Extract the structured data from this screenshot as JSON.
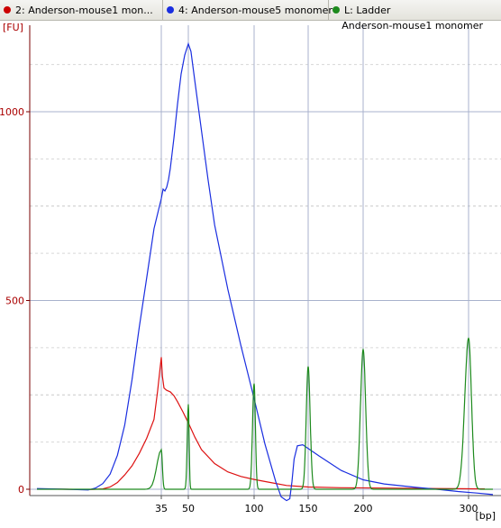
{
  "tabs": [
    {
      "label": "2: Anderson-mouse1 mon...",
      "color": "#cc0000",
      "active": true
    },
    {
      "label": "4: Anderson-mouse5 monomer",
      "color": "#1a2ee0",
      "active": false
    },
    {
      "label": "L: Ladder",
      "color": "#1d8a1d",
      "active": false
    }
  ],
  "chart_data": {
    "type": "line",
    "title": "Anderson-mouse1 monomer",
    "ylabel": "[FU]",
    "xlabel": "[bp]",
    "x_ticks": [
      {
        "label": "35",
        "value": 35
      },
      {
        "label": "50",
        "value": 50
      },
      {
        "label": "100",
        "value": 100
      },
      {
        "label": "150",
        "value": 150
      },
      {
        "label": "200",
        "value": 200
      },
      {
        "label": "300",
        "value": 300
      }
    ],
    "y_ticks": [
      0,
      500,
      1000
    ],
    "ylim": [
      -25,
      1235
    ],
    "grid": true,
    "series": [
      {
        "name": "Anderson-mouse1 monomer",
        "color": "#dd1111",
        "points": [
          [
            18,
            1
          ],
          [
            22,
            0
          ],
          [
            25,
            -1
          ],
          [
            27,
            1
          ],
          [
            28,
            6
          ],
          [
            29,
            18
          ],
          [
            30,
            38
          ],
          [
            31,
            62
          ],
          [
            32,
            95
          ],
          [
            33,
            135
          ],
          [
            34,
            185
          ],
          [
            34.5,
            260
          ],
          [
            35,
            350
          ],
          [
            35.6,
            300
          ],
          [
            36.5,
            268
          ],
          [
            38,
            262
          ],
          [
            40,
            258
          ],
          [
            42,
            248
          ],
          [
            44,
            232
          ],
          [
            47,
            205
          ],
          [
            50,
            176
          ],
          [
            55,
            138
          ],
          [
            60,
            105
          ],
          [
            70,
            68
          ],
          [
            80,
            46
          ],
          [
            90,
            34
          ],
          [
            100,
            26
          ],
          [
            115,
            18
          ],
          [
            130,
            10
          ],
          [
            150,
            6
          ],
          [
            180,
            4
          ],
          [
            220,
            3
          ],
          [
            270,
            2
          ],
          [
            320,
            1
          ]
        ]
      },
      {
        "name": "Anderson-mouse5 monomer",
        "color": "#1a2ee0",
        "points": [
          [
            18,
            2
          ],
          [
            22,
            0
          ],
          [
            25,
            -2
          ],
          [
            26,
            3
          ],
          [
            27,
            15
          ],
          [
            28,
            40
          ],
          [
            29,
            90
          ],
          [
            30,
            170
          ],
          [
            31,
            290
          ],
          [
            32,
            430
          ],
          [
            33,
            560
          ],
          [
            34,
            690
          ],
          [
            35,
            770
          ],
          [
            36,
            795
          ],
          [
            37,
            790
          ],
          [
            38,
            800
          ],
          [
            39,
            820
          ],
          [
            40,
            850
          ],
          [
            42,
            930
          ],
          [
            44,
            1020
          ],
          [
            46,
            1100
          ],
          [
            48,
            1150
          ],
          [
            50,
            1180
          ],
          [
            52,
            1160
          ],
          [
            55,
            1080
          ],
          [
            60,
            950
          ],
          [
            65,
            820
          ],
          [
            70,
            700
          ],
          [
            80,
            530
          ],
          [
            90,
            380
          ],
          [
            100,
            240
          ],
          [
            110,
            120
          ],
          [
            120,
            20
          ],
          [
            125,
            -20
          ],
          [
            130,
            -30
          ],
          [
            133,
            -25
          ],
          [
            135,
            20
          ],
          [
            137,
            80
          ],
          [
            140,
            115
          ],
          [
            145,
            118
          ],
          [
            150,
            108
          ],
          [
            160,
            88
          ],
          [
            180,
            50
          ],
          [
            200,
            25
          ],
          [
            220,
            14
          ],
          [
            250,
            5
          ],
          [
            270,
            0
          ],
          [
            290,
            -6
          ],
          [
            310,
            -10
          ],
          [
            330,
            -14
          ]
        ]
      },
      {
        "name": "Ladder",
        "color": "#1d8a1d",
        "peaks": [
          {
            "bp": 35,
            "height": 105
          },
          {
            "bp": 50,
            "height": 225
          },
          {
            "bp": 100,
            "height": 280
          },
          {
            "bp": 150,
            "height": 325
          },
          {
            "bp": 200,
            "height": 370
          },
          {
            "bp": 300,
            "height": 400
          }
        ]
      }
    ]
  }
}
